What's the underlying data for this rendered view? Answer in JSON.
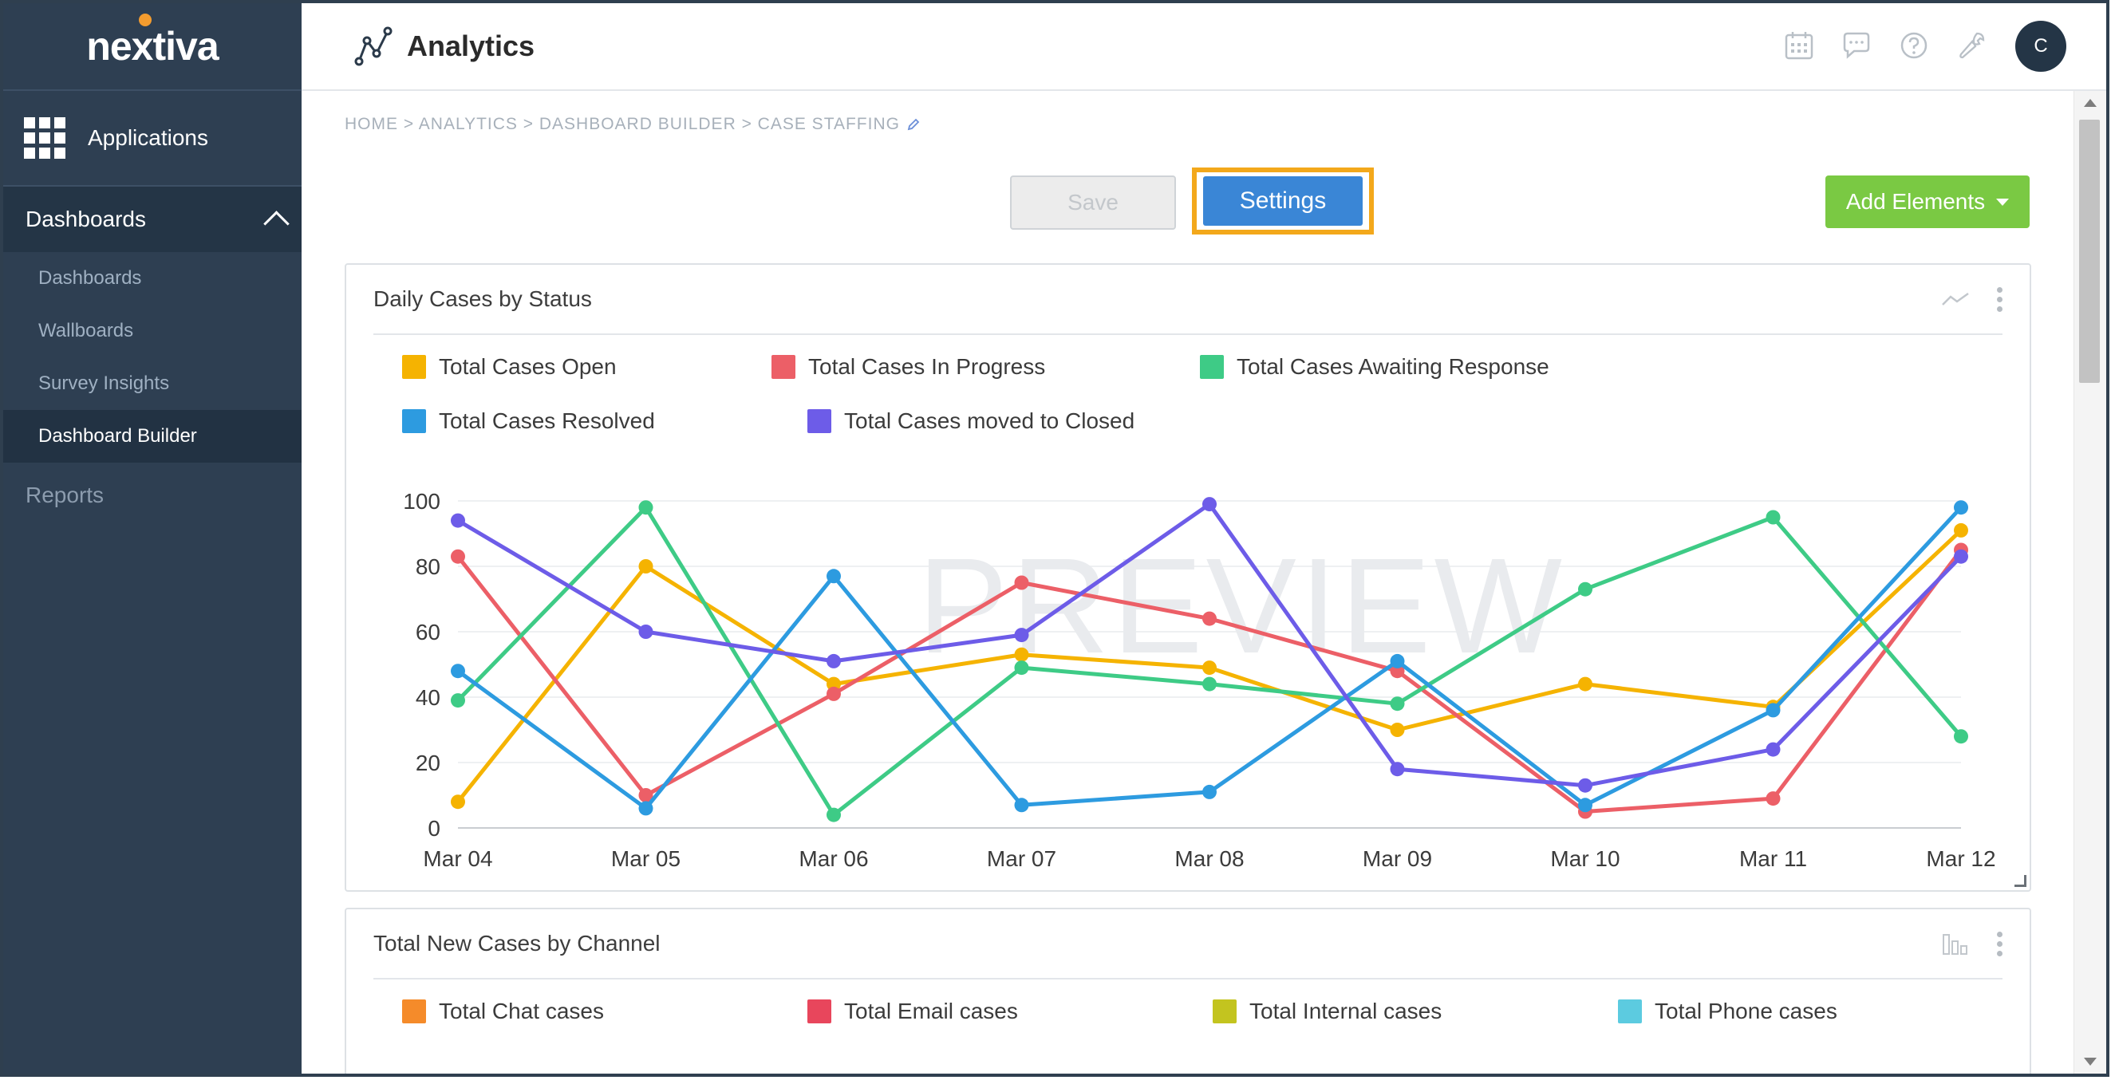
{
  "brand": {
    "logo_text": "nextiva",
    "accent": "#f39c2f"
  },
  "sidebar": {
    "applications_label": "Applications",
    "section_label": "Dashboards",
    "items": [
      {
        "label": "Dashboards",
        "active": false
      },
      {
        "label": "Wallboards",
        "active": false
      },
      {
        "label": "Survey Insights",
        "active": false
      },
      {
        "label": "Dashboard Builder",
        "active": true
      }
    ],
    "reports_label": "Reports"
  },
  "header": {
    "title": "Analytics",
    "icons": [
      "calendar-icon",
      "chat-icon",
      "help-icon",
      "wrench-icon"
    ],
    "avatar_initial": "C"
  },
  "breadcrumb": "HOME > ANALYTICS > DASHBOARD BUILDER > CASE STAFFING",
  "toolbar": {
    "save_label": "Save",
    "settings_label": "Settings",
    "add_elements_label": "Add Elements"
  },
  "panels": [
    {
      "title": "Daily Cases by Status"
    },
    {
      "title": "Total New Cases by Channel"
    }
  ],
  "chart_data": [
    {
      "type": "line",
      "title": "Daily Cases by Status",
      "watermark": "PREVIEW",
      "x": [
        "Mar 04",
        "Mar 05",
        "Mar 06",
        "Mar 07",
        "Mar 08",
        "Mar 09",
        "Mar 10",
        "Mar 11",
        "Mar 12"
      ],
      "ylim": [
        0,
        100
      ],
      "yticks": [
        0,
        20,
        40,
        60,
        80,
        100
      ],
      "grid": true,
      "legend_position": "top",
      "series": [
        {
          "name": "Total Cases Open",
          "color": "#f5b301",
          "values": [
            8,
            80,
            44,
            53,
            49,
            30,
            44,
            37,
            91
          ]
        },
        {
          "name": "Total Cases In Progress",
          "color": "#ec5f67",
          "values": [
            83,
            10,
            41,
            75,
            64,
            48,
            5,
            9,
            85
          ]
        },
        {
          "name": "Total Cases Awaiting Response",
          "color": "#3ecb86",
          "values": [
            39,
            98,
            4,
            49,
            44,
            38,
            73,
            95,
            28
          ]
        },
        {
          "name": "Total Cases Resolved",
          "color": "#2d9be0",
          "values": [
            48,
            6,
            77,
            7,
            11,
            51,
            7,
            36,
            98
          ]
        },
        {
          "name": "Total Cases moved to Closed",
          "color": "#6d5ce8",
          "values": [
            94,
            60,
            51,
            59,
            99,
            18,
            13,
            24,
            83
          ]
        }
      ]
    },
    {
      "type": "bar",
      "title": "Total New Cases by Channel",
      "series": [
        {
          "name": "Total Chat cases",
          "color": "#f58b2a"
        },
        {
          "name": "Total Email cases",
          "color": "#e8465c"
        },
        {
          "name": "Total Internal cases",
          "color": "#c3c41f"
        },
        {
          "name": "Total Phone cases",
          "color": "#5ccbe0"
        }
      ]
    }
  ]
}
